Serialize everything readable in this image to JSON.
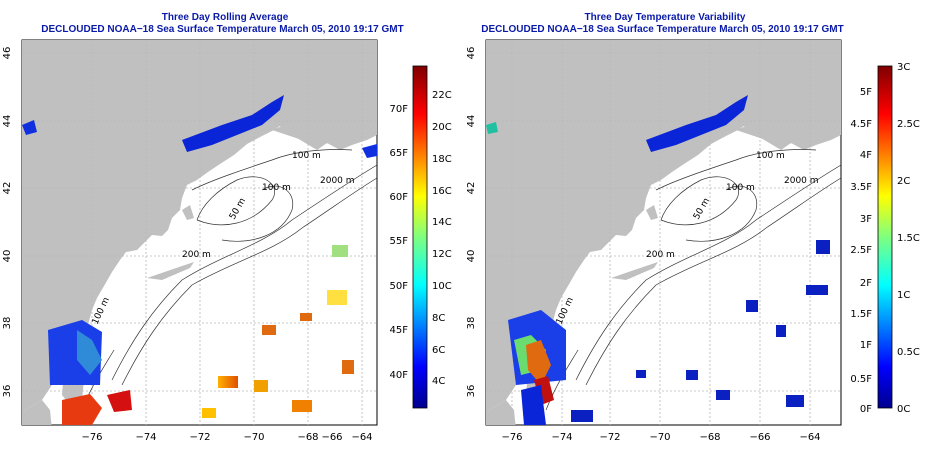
{
  "panels": [
    {
      "title": "Three Day Rolling Average",
      "subtitle": "DECLOUDED NOAA−18 Sea Surface Temperature March 05, 2010 19:17 GMT",
      "x_ticks": [
        "−76",
        "−74",
        "−72",
        "−70",
        "−68",
        "−66",
        "−64"
      ],
      "y_ticks": [
        "36",
        "38",
        "40",
        "42",
        "44",
        "46"
      ],
      "contour_labels": [
        "100 m",
        "2000 m",
        "100 m",
        "50 m",
        "200 m",
        "100 m"
      ],
      "colorbar": {
        "left_labels": [
          "40F",
          "45F",
          "50F",
          "55F",
          "60F",
          "65F",
          "70F"
        ],
        "right_labels": [
          "4C",
          "6C",
          "8C",
          "10C",
          "12C",
          "14C",
          "16C",
          "18C",
          "20C",
          "22C"
        ]
      }
    },
    {
      "title": "Three Day Temperature Variability",
      "subtitle": "DECLOUDED NOAA−18 Sea Surface Temperature March 05, 2010 19:17 GMT",
      "x_ticks": [
        "−76",
        "−74",
        "−72",
        "−70",
        "−68",
        "−66",
        "−64"
      ],
      "y_ticks": [
        "36",
        "38",
        "40",
        "42",
        "44",
        "46"
      ],
      "contour_labels": [
        "100 m",
        "2000 m",
        "100 m",
        "50 m",
        "200 m",
        "100 m"
      ],
      "colorbar": {
        "left_labels": [
          "0F",
          "0.5F",
          "1F",
          "1.5F",
          "2F",
          "2.5F",
          "3F",
          "3.5F",
          "4F",
          "4.5F",
          "5F"
        ],
        "right_labels": [
          "0C",
          "0.5C",
          "1C",
          "1.5C",
          "2C",
          "2.5C",
          "3C"
        ]
      }
    }
  ],
  "colors": {
    "title": "#0a1aa8",
    "land": "#c0c0c0",
    "contour": "#333333",
    "grid": "#b8b8b8"
  }
}
